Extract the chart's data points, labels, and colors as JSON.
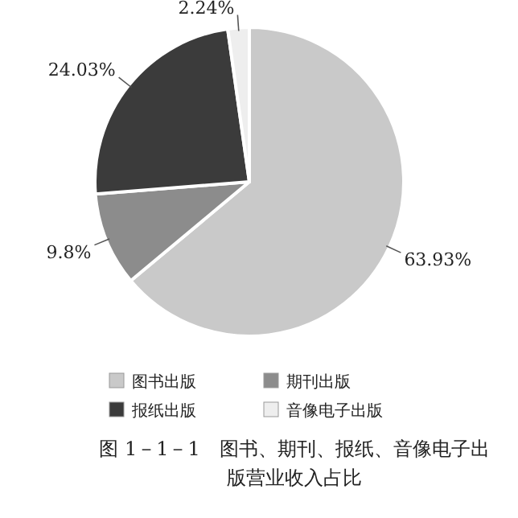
{
  "chart_data": {
    "type": "pie",
    "title": "图 1－1－1　图书、期刊、报纸、音像电子出版营业收入占比",
    "categories": [
      "图书出版",
      "期刊出版",
      "报纸出版",
      "音像电子出版"
    ],
    "values": [
      63.93,
      9.8,
      24.03,
      2.24
    ],
    "value_labels": [
      "63.93%",
      "9.8%",
      "24.03%",
      "2.24%"
    ],
    "colors": [
      "#c9c9c9",
      "#8c8c8c",
      "#3b3b3b",
      "#eeeeee"
    ],
    "legend": "bottom"
  }
}
